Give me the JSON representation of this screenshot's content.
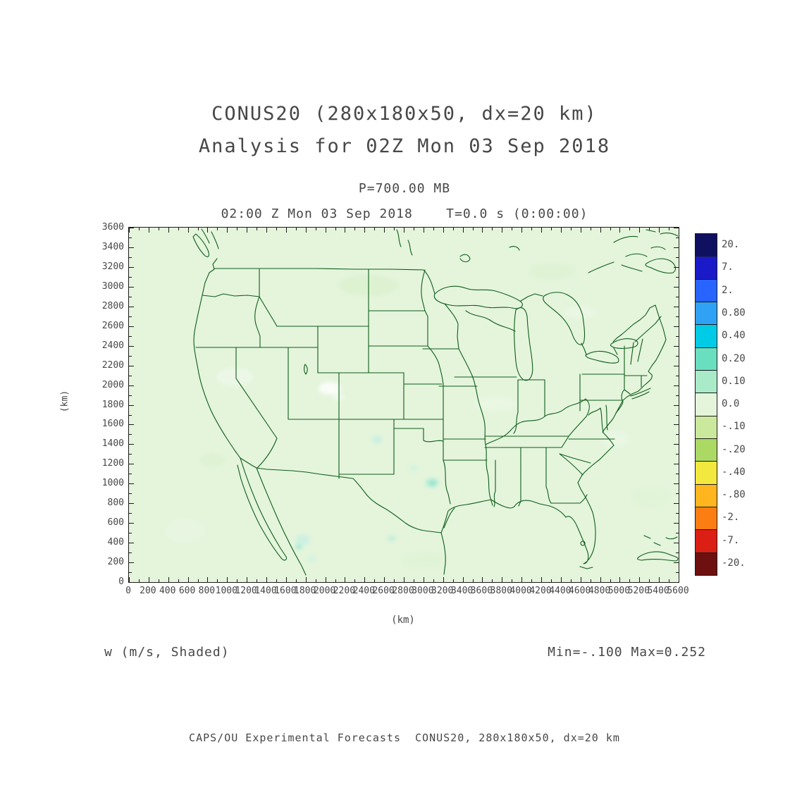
{
  "header": {
    "title_line1": "CONUS20 (280x180x50, dx=20 km)",
    "title_line2": "Analysis for 02Z Mon 03 Sep 2018",
    "pressure_label": "P=700.00 MB",
    "time_label": "02:00 Z Mon 03 Sep 2018    T=0.0 s (0:00:00)"
  },
  "chart_data": {
    "type": "heatmap",
    "title": "CONUS20 (280x180x50, dx=20 km) Analysis for 02Z Mon 03 Sep 2018",
    "variable": "w",
    "units": "m/s",
    "shading": "Shaded",
    "pressure_level_label": "P=700.00 MB",
    "valid_time_label": "02:00 Z Mon 03 Sep 2018",
    "forecast_time_label": "T=0.0 s (0:00:00)",
    "xlabel": "(km)",
    "ylabel": "(km)",
    "xlim": [
      0,
      5600
    ],
    "ylim": [
      0,
      3600
    ],
    "x_tick_step": 200,
    "y_tick_step": 200,
    "x_ticks": [
      "0",
      "200",
      "400",
      "600",
      "800",
      "1000",
      "1200",
      "1400",
      "1600",
      "1800",
      "2000",
      "2200",
      "2400",
      "2600",
      "2800",
      "3000",
      "3200",
      "3400",
      "3600",
      "3800",
      "4000",
      "4200",
      "4400",
      "4600",
      "4800",
      "5000",
      "5200",
      "5400",
      "5600"
    ],
    "y_ticks": [
      "0",
      "200",
      "400",
      "600",
      "800",
      "1000",
      "1200",
      "1400",
      "1600",
      "1800",
      "2000",
      "2200",
      "2400",
      "2600",
      "2800",
      "3000",
      "3200",
      "3400",
      "3600"
    ],
    "field_min": -0.1,
    "field_max": 0.252,
    "colorbar": {
      "levels": [
        "20.",
        "7.",
        "2.",
        "0.80",
        "0.40",
        "0.20",
        "0.10",
        "0.0",
        "-.10",
        "-.20",
        "-.40",
        "-.80",
        "-2.",
        "-7.",
        "-20."
      ],
      "colors": [
        "#101060",
        "#1a1ac8",
        "#2864ff",
        "#30a2f5",
        "#00cbe6",
        "#69dfc0",
        "#a9ebc9",
        "#e4f5dc",
        "#cbe99c",
        "#abd964",
        "#f2e83e",
        "#ffb61e",
        "#fc7e12",
        "#dc1f14",
        "#6e1010"
      ]
    },
    "colors": {
      "background_field": "#e4f5dc",
      "map_lines": "#0f5c18",
      "frame": "#1a1a1a",
      "text": "#474747"
    }
  },
  "footer": {
    "field_label": "w (m/s, Shaded)",
    "minmax_label": "Min=-.100 Max=0.252",
    "credit": "CAPS/OU Experimental Forecasts  CONUS20, 280x180x50, dx=20 km"
  }
}
